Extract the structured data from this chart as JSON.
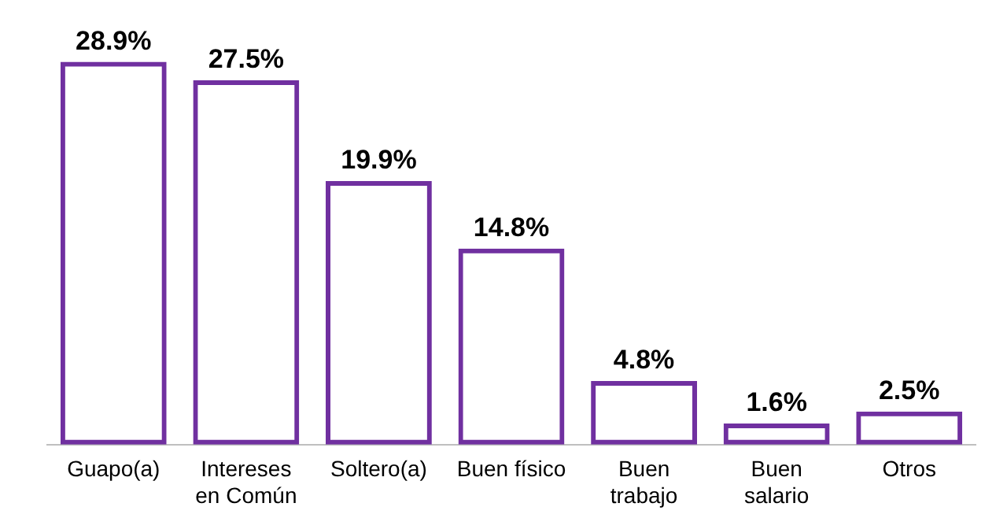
{
  "chart_data": {
    "type": "bar",
    "categories": [
      "Guapo(a)",
      "Intereses en Común",
      "Soltero(a)",
      "Buen físico",
      "Buen trabajo",
      "Buen salario",
      "Otros"
    ],
    "values": [
      28.9,
      27.5,
      19.9,
      14.8,
      4.8,
      1.6,
      2.5
    ],
    "value_labels": [
      "28.9%",
      "27.5%",
      "19.9%",
      "14.8%",
      "4.8%",
      "1.6%",
      "2.5%"
    ],
    "color": "#7030a0",
    "grid": false,
    "legend": false
  }
}
